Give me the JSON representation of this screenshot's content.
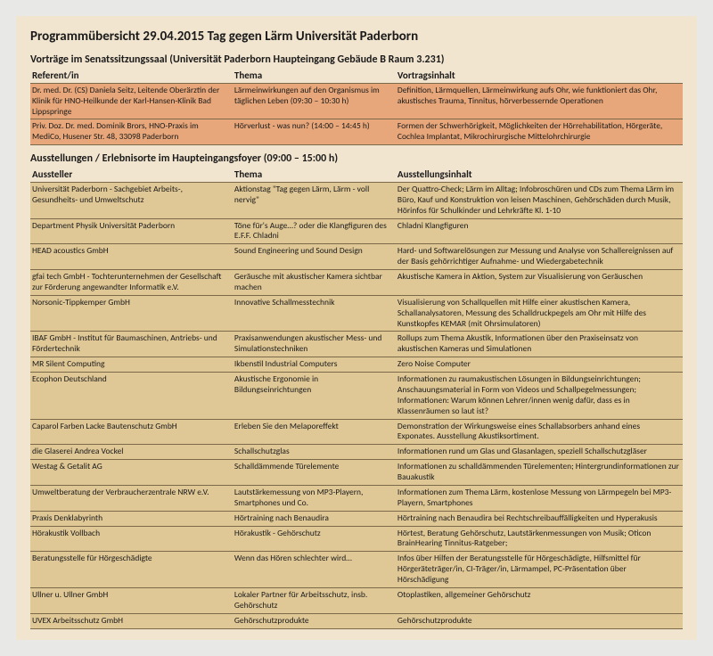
{
  "title": "Programmübersicht 29.04.2015 Tag gegen Lärm Universität Paderborn",
  "section1": {
    "heading": "Vorträge im Senatssitzungssaal (Universität Paderborn Haupteingang Gebäude B Raum 3.231)",
    "columns": [
      "Referent/in",
      "Thema",
      "Vortragsinhalt"
    ],
    "rows": [
      [
        "Dr. med. Dr. (CS) Daniela Seitz, Leitende Oberärztin der Klinik für HNO-Heilkunde der Karl-Hansen-Klinik Bad Lippspringe",
        "Lärmeinwirkungen auf den Organismus im täglichen Leben (09:30 – 10:30 h)",
        "Definition, Lärmquellen, Lärmeinwirkung aufs Ohr, wie funktioniert das Ohr, akustisches Trauma, Tinnitus, hörverbessernde Operationen"
      ],
      [
        "Priv. Doz. Dr. med. Dominik Brors, HNO-Praxis im MediCo, Husener Str. 48, 33098 Paderborn",
        "Hörverlust - was nun? (14:00 – 14:45 h)",
        "Formen der Schwerhörigkeit, Möglichkeiten der Hörrehabilitation, Hörgeräte, Cochlea Implantat, Mikrochirurgische Mittelohrchirurgie"
      ]
    ]
  },
  "section2": {
    "heading": "Ausstellungen / Erlebnisorte im Haupteingangsfoyer (09:00 – 15:00 h)",
    "columns": [
      "Aussteller",
      "Thema",
      "Ausstellungsinhalt"
    ],
    "rows": [
      [
        "Universität Paderborn - Sachgebiet Arbeits-, Gesundheits- und Umweltschutz",
        "Aktionstag \"Tag gegen Lärm, Lärm - voll nervig\"",
        "Der Quattro-Check; Lärm im Alltag; Infobroschüren und CDs zum Thema Lärm im Büro, Kauf und Konstruktion von leisen Maschinen, Gehörschäden durch Musik, Hörinfos für Schulkinder und Lehrkräfte Kl. 1-10"
      ],
      [
        "Department Physik Universität Paderborn",
        "Töne für's Auge…? oder\ndie Klangfiguren des E.F.F. Chladni",
        "Chladni Klangfiguren"
      ],
      [
        "HEAD acoustics GmbH",
        "Sound Engineering und Sound Design",
        "Hard- und Softwarelösungen zur Messung und Analyse von Schallereignissen auf der Basis gehörrichtiger Aufnahme- und Wiedergabetechnik"
      ],
      [
        "gfai tech GmbH - Tochterunternehmen der Gesellschaft zur Förderung angewandter Informatik e.V.",
        "Geräusche mit akustischer Kamera sichtbar machen",
        "Akustische Kamera in Aktion, System zur Visualisierung von Geräuschen"
      ],
      [
        "Norsonic-Tippkemper GmbH",
        "Innovative Schallmesstechnik",
        "Visualisierung von Schallquellen mit Hilfe einer akustischen Kamera, Schallanalysatoren, Messung des Schalldruckpegels am Ohr mit Hilfe des Kunstkopfes KEMAR (mit Ohrsimulatoren)"
      ],
      [
        "IBAF GmbH - Institut für Baumaschinen, Antriebs- und Fördertechnik",
        "Praxisanwendungen akustischer Mess- und Simulationstechniken",
        "Rollups zum Thema Akustik, Informationen über den Praxiseinsatz von akustischen Kameras und Simulationen"
      ],
      [
        "MR Silent Computing",
        "Ikbenstil Industrial Computers",
        "Zero Noise Computer"
      ],
      [
        "Ecophon Deutschland",
        "Akustische Ergonomie in Bildungseinrichtungen",
        "Informationen zu raumakustischen Lösungen in Bildungseinrichtungen; Anschauungsmaterial in Form von Videos und Schallpegelmessungen; Informationen: Warum können Lehrer/innen wenig dafür, dass es in Klassenräumen so laut ist?"
      ],
      [
        "Caparol Farben Lacke Bautenschutz GmbH",
        "Erleben Sie den Melaporeffekt",
        "Demonstration der Wirkungsweise eines Schallabsorbers anhand eines Exponates. Ausstellung Akustiksortiment."
      ],
      [
        "die Glaserei Andrea Vockel",
        "Schallschutzglas",
        "Informationen rund um Glas und Glasanlagen, speziell Schallschutzgläser"
      ],
      [
        "Westag & Getalit AG",
        "Schalldämmende Türelemente",
        "Informationen zu schalldämmenden Türelementen; Hintergrundinformationen zur Bauakustik"
      ],
      [
        "Umweltberatung der Verbraucherzentrale NRW e.V.",
        "Lautstärkemessung von MP3-Playern, Smartphones und Co.",
        "Informationen zum Thema Lärm, kostenlose Messung von Lärmpegeln bei MP3-Playern, Smartphones"
      ],
      [
        "Praxis Denklabyrinth",
        "Hörtraining nach Benaudira",
        "Hörtraining nach Benaudira bei Rechtschreibauffälligkeiten und Hyperakusis"
      ],
      [
        "Hörakustik Vollbach",
        "Hörakustik - Gehörschutz",
        "Hörtest, Beratung Gehörschutz, Lautstärkenmessungen von Musik;\nOticon BrainHearing Tinnitus-Ratgeber;"
      ],
      [
        "Beratungsstelle für Hörgeschädigte",
        "Wenn das Hören schlechter wird…",
        "Infos über Hilfen der Beratungsstelle für Hörgeschädigte, Hilfsmittel für Hörgeräteträger/in, CI-Träger/in, Lärmampel,  PC-Präsentation über Hörschädigung"
      ],
      [
        "Ullner u. Ullner GmbH",
        "Lokaler Partner für Arbeitsschutz, insb. Gehörschutz",
        "Otoplastiken, allgemeiner Gehörschutz"
      ],
      [
        "UVEX Arbeitsschutz GmbH",
        "Gehörschutzprodukte",
        "Gehörschutzprodukte"
      ]
    ]
  },
  "styles": {
    "page_bg": "#e8e9e6",
    "sheet_bg": "#f2e5cf",
    "section1_row_bg": "#e8a77a",
    "section2_row_bg": "#e0c896",
    "border_color": "#7a6a4a",
    "title_fontsize_pt": 15,
    "heading_fontsize_pt": 12,
    "body_fontsize_pt": 9.5,
    "col_widths_pct": [
      31,
      25,
      44
    ]
  }
}
